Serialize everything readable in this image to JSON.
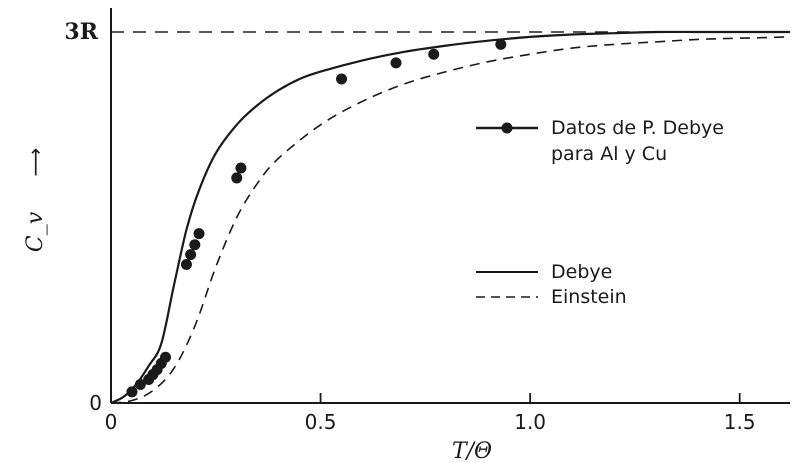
{
  "chart_data": {
    "type": "line",
    "title": "",
    "xlabel": "T/Θ",
    "ylabel": "C_v",
    "ylabel_arrow": "⟶",
    "xlim": [
      0,
      1.62
    ],
    "ylim": [
      0,
      3
    ],
    "x_ticks": [
      {
        "value": 0,
        "label": "0"
      },
      {
        "value": 0.5,
        "label": "0.5"
      },
      {
        "value": 1.0,
        "label": "1.0"
      },
      {
        "value": 1.5,
        "label": "1.5"
      }
    ],
    "y_ticks": [
      {
        "value": 0,
        "label": "0"
      },
      {
        "value": 3,
        "label": "3R"
      }
    ],
    "grid": false,
    "reference_line": {
      "y": 3,
      "style": "dashed"
    },
    "legend": {
      "placement": "right",
      "entries": [
        {
          "label_lines": [
            "Datos de P. Debye",
            "para Al y Cu"
          ],
          "marker": "circle",
          "line": "solid"
        },
        {
          "label_lines": [
            "Debye"
          ],
          "line": "solid"
        },
        {
          "label_lines": [
            "Einstein"
          ],
          "line": "dashed"
        }
      ]
    },
    "series": [
      {
        "name": "Debye",
        "style": "solid",
        "x": [
          0,
          0.03,
          0.06,
          0.09,
          0.12,
          0.15,
          0.18,
          0.21,
          0.25,
          0.3,
          0.35,
          0.4,
          0.45,
          0.5,
          0.6,
          0.7,
          0.8,
          0.9,
          1.0,
          1.1,
          1.2,
          1.3,
          1.4,
          1.5,
          1.62
        ],
        "y": [
          0,
          0.05,
          0.15,
          0.3,
          0.48,
          0.95,
          1.4,
          1.72,
          2.02,
          2.25,
          2.41,
          2.53,
          2.62,
          2.68,
          2.77,
          2.84,
          2.89,
          2.93,
          2.96,
          2.98,
          2.99,
          3.0,
          3.0,
          3.0,
          3.0
        ]
      },
      {
        "name": "Einstein",
        "style": "dashed",
        "x": [
          0,
          0.05,
          0.1,
          0.15,
          0.2,
          0.25,
          0.3,
          0.35,
          0.4,
          0.5,
          0.6,
          0.7,
          0.8,
          0.9,
          1.0,
          1.1,
          1.2,
          1.3,
          1.4,
          1.5,
          1.62
        ],
        "y": [
          0,
          0.02,
          0.1,
          0.28,
          0.62,
          1.1,
          1.5,
          1.78,
          1.98,
          2.25,
          2.44,
          2.58,
          2.68,
          2.76,
          2.82,
          2.87,
          2.9,
          2.92,
          2.94,
          2.95,
          2.96
        ]
      },
      {
        "name": "Datos de P. Debye para Al y Cu",
        "style": "points",
        "x": [
          0.05,
          0.07,
          0.09,
          0.1,
          0.11,
          0.12,
          0.13,
          0.18,
          0.19,
          0.2,
          0.21,
          0.3,
          0.31,
          0.55,
          0.68,
          0.77,
          0.93
        ],
        "y": [
          0.09,
          0.15,
          0.19,
          0.23,
          0.27,
          0.32,
          0.37,
          1.12,
          1.2,
          1.28,
          1.37,
          1.82,
          1.9,
          2.62,
          2.75,
          2.82,
          2.9
        ]
      }
    ]
  }
}
